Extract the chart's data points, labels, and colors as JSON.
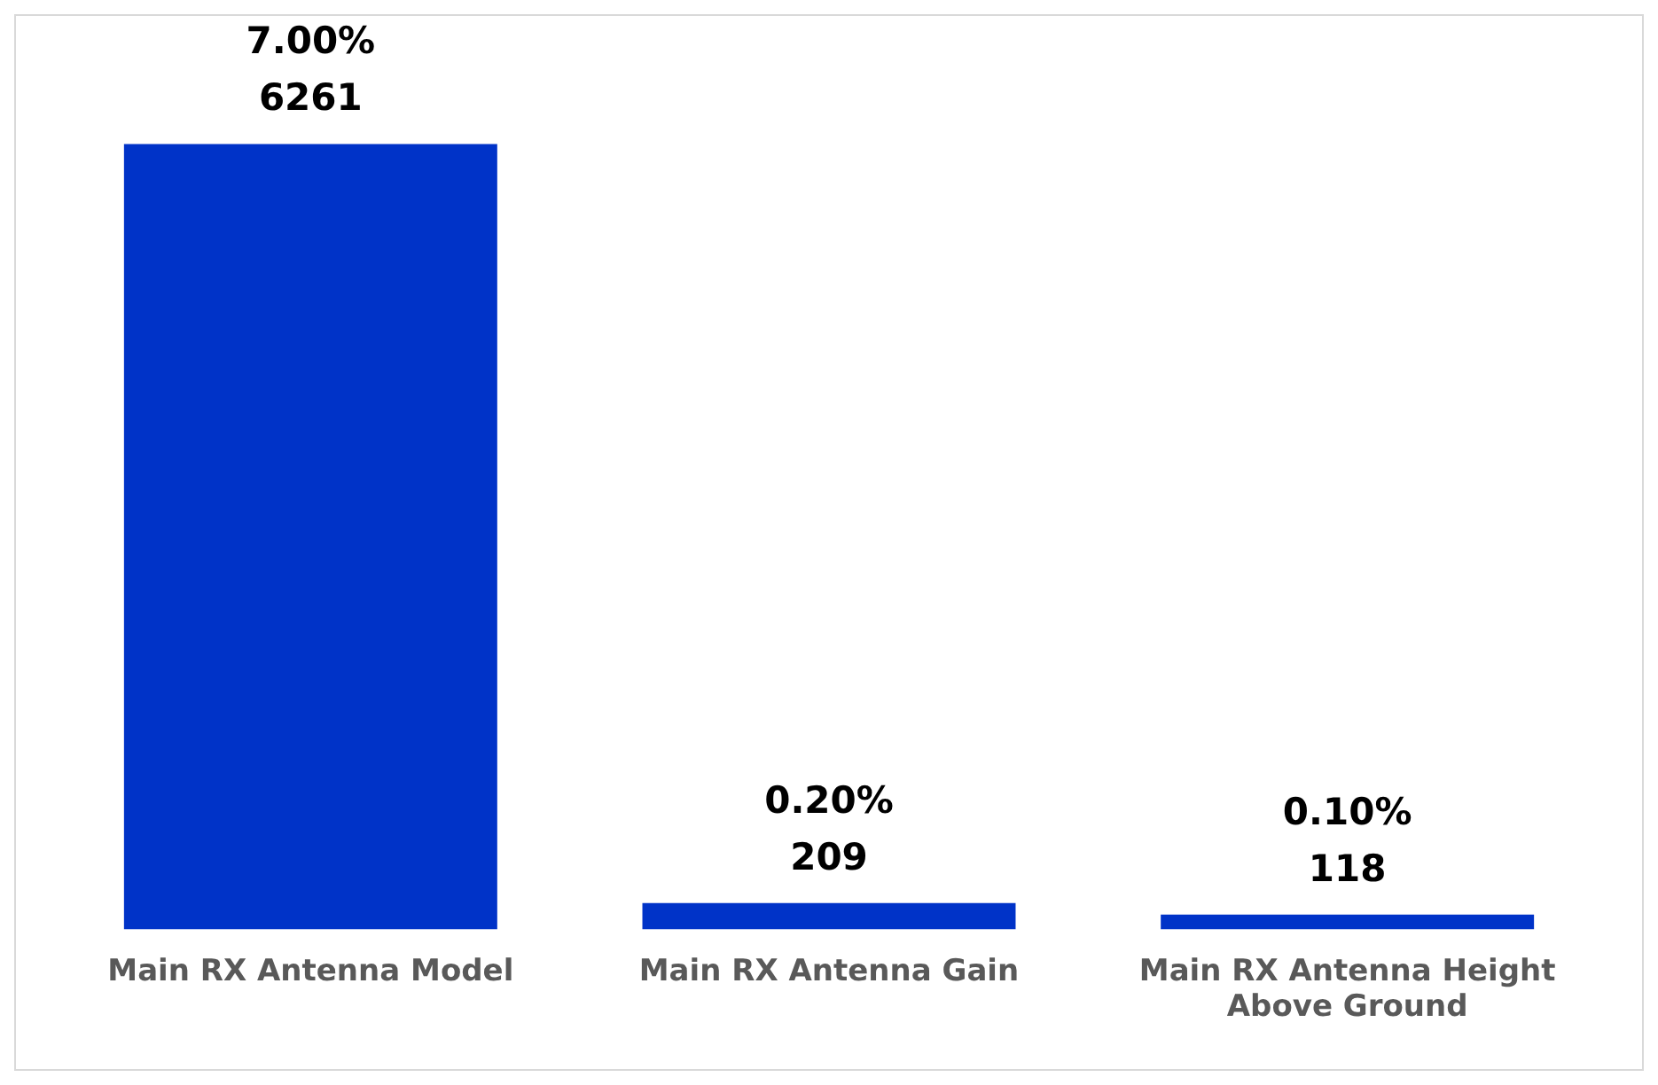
{
  "chart_data": {
    "type": "bar",
    "categories": [
      "Main RX Antenna Model",
      "Main RX Antenna Gain",
      "Main RX Antenna Height Above Ground"
    ],
    "values": [
      6261,
      209,
      118
    ],
    "color": "#0033c8",
    "value_labels": [
      "7.00%\n6261",
      "0.20%\n209",
      "0.10%\n118"
    ],
    "grid": false,
    "legend": false
  }
}
